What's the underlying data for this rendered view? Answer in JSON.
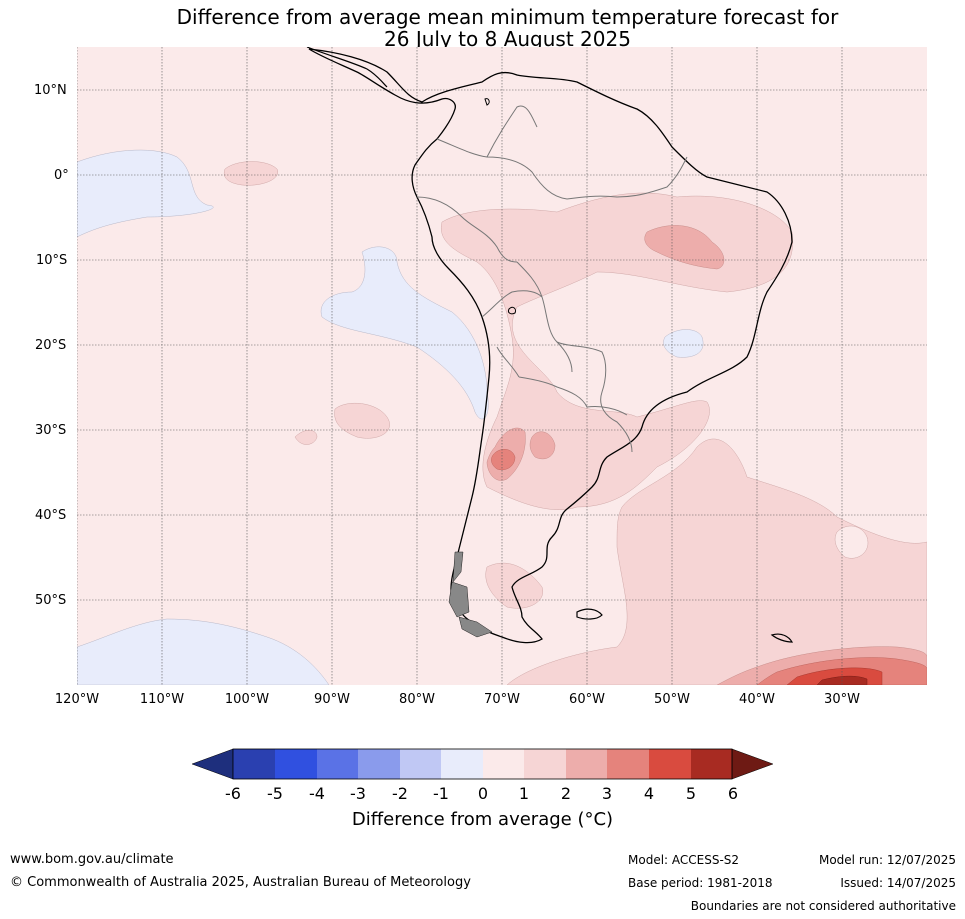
{
  "title": {
    "line1": "Difference from average mean minimum temperature forecast for",
    "line2": "26 July to 8 August 2025"
  },
  "map": {
    "lat_labels": [
      "10°N",
      "0°",
      "10°S",
      "20°S",
      "30°S",
      "40°S",
      "50°S"
    ],
    "lon_labels": [
      "120°W",
      "110°W",
      "100°W",
      "90°W",
      "80°W",
      "70°W",
      "60°W",
      "50°W",
      "40°W",
      "30°W"
    ]
  },
  "colorbar": {
    "ticks": [
      "-6",
      "-5",
      "-4",
      "-3",
      "-2",
      "-1",
      "0",
      "1",
      "2",
      "3",
      "4",
      "5",
      "6"
    ],
    "colors": [
      "#1e2f7d",
      "#2a40b0",
      "#3050e0",
      "#5a72e6",
      "#8a9bec",
      "#c0c8f4",
      "#e8ecfb",
      "#fbeaea",
      "#f6d5d5",
      "#edadab",
      "#e5837c",
      "#d94b3f",
      "#a82b22",
      "#6e1a14"
    ],
    "label": "Difference from average ($^\\circ$C)",
    "label_display": "Difference from average (°C)"
  },
  "footer": {
    "website": "www.bom.gov.au/climate",
    "copyright": "© Commonwealth of Australia 2025, Australian Bureau of Meteorology",
    "model": "Model: ACCESS-S2",
    "base_period": "Base period: 1981-2018",
    "model_run": "Model run: 12/07/2025",
    "issued": "Issued: 14/07/2025",
    "boundaries_note": "Boundaries are not considered authoritative"
  }
}
